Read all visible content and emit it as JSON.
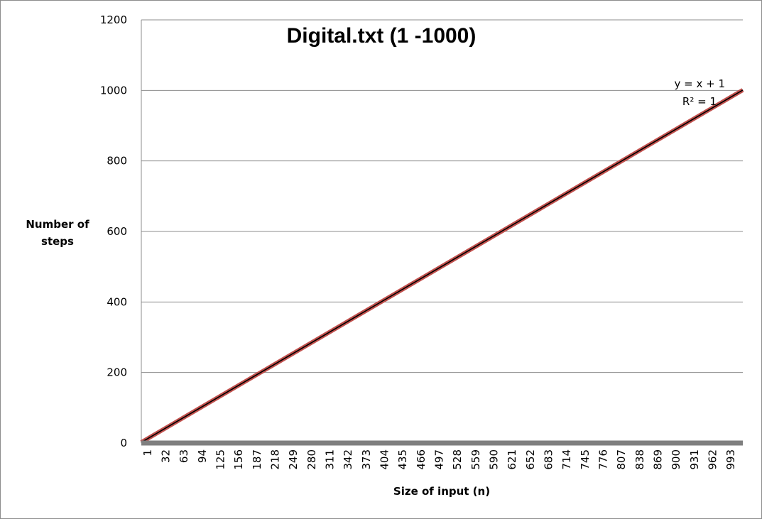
{
  "chart_data": {
    "type": "line",
    "title": "Digital.txt (1 -1000)",
    "xlabel": "Size of input (n)",
    "ylabel_lines": [
      "Number of",
      "steps"
    ],
    "ylim": [
      0,
      1200
    ],
    "y_ticks": [
      0,
      200,
      400,
      600,
      800,
      1000,
      1200
    ],
    "xlim": [
      1,
      1000
    ],
    "x_ticks": [
      1,
      32,
      63,
      94,
      125,
      156,
      187,
      218,
      249,
      280,
      311,
      342,
      373,
      404,
      435,
      466,
      497,
      528,
      559,
      590,
      621,
      652,
      683,
      714,
      745,
      776,
      807,
      838,
      869,
      900,
      931,
      962,
      993
    ],
    "grid": true,
    "series": [
      {
        "role": "data",
        "color": "#c0504d",
        "x": [
          1,
          1000
        ],
        "y": [
          2,
          1001
        ]
      },
      {
        "role": "trendline",
        "color": "#000000",
        "x": [
          1,
          1000
        ],
        "y": [
          2,
          1001
        ]
      },
      {
        "role": "baseline",
        "color": "#7f7f7f",
        "x": [
          1,
          1000
        ],
        "y": [
          0,
          0
        ]
      }
    ],
    "annotations": {
      "equation": "y = x + 1",
      "r_squared": "R² = 1"
    },
    "colors": {
      "gridline": "#8c8c8c",
      "data_line": "#c0504d",
      "trendline": "#000000",
      "baseline": "#7f7f7f"
    }
  }
}
